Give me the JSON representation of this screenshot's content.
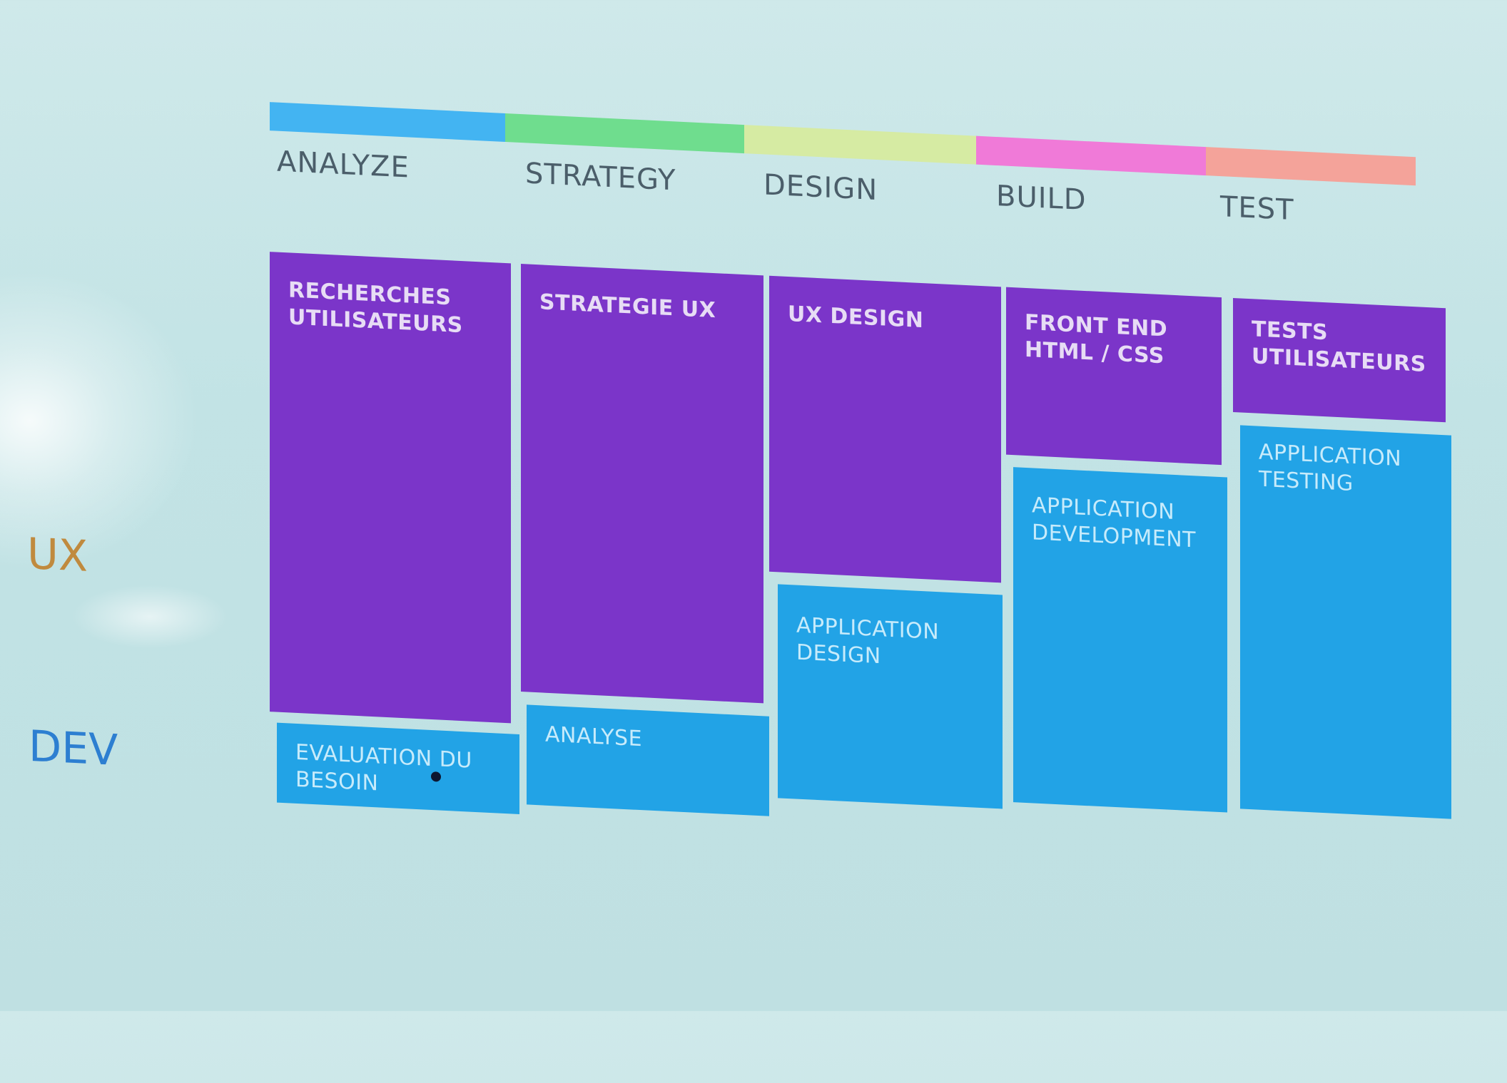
{
  "phases": [
    {
      "label": "ANALYZE",
      "color": "#43b4f2"
    },
    {
      "label": "STRATEGY",
      "color": "#6fdd8e"
    },
    {
      "label": "DESIGN",
      "color": "#d6eba3"
    },
    {
      "label": "BUILD",
      "color": "#f07ad8"
    },
    {
      "label": "TEST",
      "color": "#f4a39a"
    }
  ],
  "rows": {
    "ux": {
      "label": "UX",
      "color": "#c08a3e"
    },
    "dev": {
      "label": "DEV",
      "color": "#2d7fd1"
    }
  },
  "tiles": {
    "ux": [
      "RECHERCHES\nUTILISATEURS",
      "STRATEGIE UX",
      "UX DESIGN",
      "FRONT END\nHTML / CSS",
      "TESTS UTILISATEURS"
    ],
    "dev": [
      "EVALUATION DU\nBESOIN",
      "ANALYSE",
      "APPLICATION\nDESIGN",
      "APPLICATION\nDEVELOPMENT",
      "APPLICATION\nTESTING"
    ]
  },
  "colors": {
    "ux_tile": "#7b35c9",
    "dev_tile": "#22a3e6"
  }
}
